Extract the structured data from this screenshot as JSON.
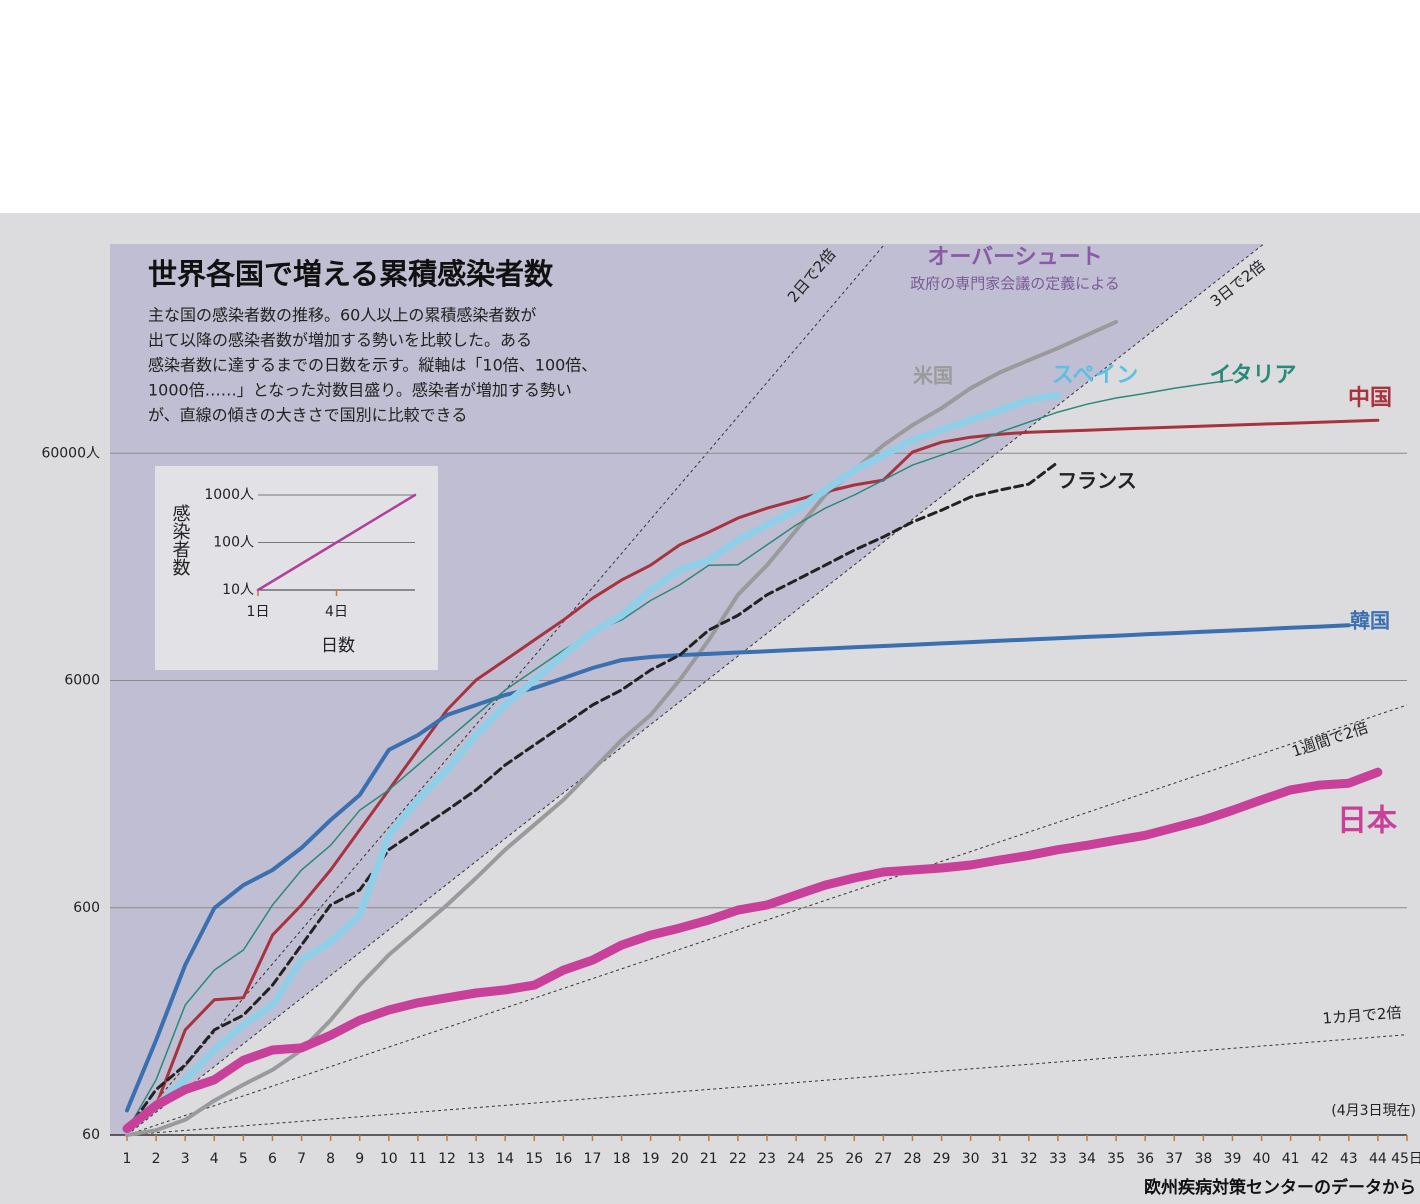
{
  "chart_data": [
    {
      "type": "line",
      "title": "世界各国で増える累積感染者数",
      "description": [
        "主な国の感染者数の推移。60人以上の累積感染者数が",
        "出て以降の感染者数が増加する勢いを比較した。ある",
        "感染者数に達するまでの日数を示す。縦軸は「10倍、100倍、",
        "1000倍……」となった対数目盛り。感染者が増加する勢い",
        "が、直線の傾きの大きさで国別に比較できる"
      ],
      "region_label": "オーバーシュート",
      "region_note": "政府の専門家会議の定義による",
      "note": "(4月3日現在)",
      "source": "欧州疾病対策センターのデータから",
      "log_y": true,
      "grid": true,
      "xlim": [
        1,
        45
      ],
      "ylim": [
        60,
        500000
      ],
      "xticks": [
        1,
        2,
        3,
        4,
        5,
        6,
        7,
        8,
        9,
        10,
        11,
        12,
        13,
        14,
        15,
        16,
        17,
        18,
        19,
        20,
        21,
        22,
        23,
        24,
        25,
        26,
        27,
        28,
        29,
        30,
        31,
        32,
        33,
        34,
        35,
        36,
        37,
        38,
        39,
        40,
        41,
        42,
        43,
        44,
        {
          "value": 45,
          "label": "45日"
        }
      ],
      "yticks": [
        60,
        600,
        6000,
        {
          "value": 60000,
          "label": "60000人"
        }
      ],
      "x": [
        1,
        2,
        3,
        4,
        5,
        6,
        7,
        8,
        9,
        10,
        11,
        12,
        13,
        14,
        15,
        16,
        17,
        18,
        19,
        20,
        21,
        22,
        23,
        24,
        25,
        26,
        27,
        28,
        29,
        30,
        31,
        32,
        33,
        34,
        35,
        36,
        37,
        38,
        39,
        40,
        41,
        42,
        43,
        44,
        45
      ],
      "reference_lines": [
        {
          "label": "2日で2倍",
          "doubling_days": 2
        },
        {
          "label": "3日で2倍",
          "doubling_days": 3
        },
        {
          "label": "1週間で2倍",
          "doubling_days": 7
        },
        {
          "label": "1カ月で2倍",
          "doubling_days": 30
        }
      ],
      "series": [
        {
          "name": "中国",
          "color": "#a8323e",
          "values": [
            64,
            81,
            174,
            236,
            241,
            455,
            617,
            880,
            1320,
            1980,
            2970,
            4450,
            6030,
            7380,
            9040,
            11070,
            13800,
            16600,
            19300,
            23700,
            27000,
            31100,
            34400,
            37300,
            40500,
            43500,
            45700,
            60700,
            67100,
            70600,
            72800,
            74300,
            75000,
            75800,
            76600,
            77400,
            78200,
            79000,
            79800,
            80600,
            81400,
            82200,
            83000,
            83900,
            null
          ]
        },
        {
          "name": "韓国",
          "color": "#3a6fb0",
          "values": [
            77,
            157,
            336,
            598,
            755,
            880,
            1100,
            1460,
            1880,
            2970,
            3450,
            4230,
            4680,
            5180,
            5560,
            6150,
            6810,
            7380,
            7610,
            7760,
            7860,
            7970,
            8070,
            8180,
            8290,
            8400,
            8510,
            8620,
            8740,
            8850,
            8970,
            9090,
            9210,
            9330,
            9450,
            9580,
            9700,
            9830,
            9960,
            10090,
            10230,
            10360,
            10500,
            null,
            null
          ]
        },
        {
          "name": "日本",
          "color": "#c8409a",
          "values": [
            64,
            81,
            95,
            105,
            128,
            142,
            145,
            165,
            192,
            213,
            229,
            241,
            253,
            261,
            274,
            319,
            353,
            411,
            455,
            488,
            530,
            586,
            617,
            683,
            755,
            811,
            862,
            880,
            898,
            925,
            973,
            1020,
            1080,
            1130,
            1190,
            1250,
            1350,
            1460,
            1610,
            1790,
            1980,
            2080,
            2120,
            2370,
            null
          ]
        },
        {
          "name": "米国",
          "color": "#9a9a9a",
          "values": [
            60,
            63,
            70,
            85,
            100,
            116,
            142,
            192,
            274,
            372,
            479,
            617,
            811,
            1080,
            1390,
            1790,
            2420,
            3280,
            4230,
            6030,
            9040,
            14300,
            19300,
            27500,
            39300,
            50600,
            65200,
            79800,
            94700,
            116000,
            136000,
            154000,
            174000,
            199000,
            227000,
            null,
            null,
            null,
            null,
            null,
            null,
            null,
            null,
            null,
            null
          ]
        },
        {
          "name": "スペイン",
          "color": "#8fd0e8",
          "values": [
            63,
            81,
            105,
            142,
            183,
            224,
            353,
            424,
            557,
            1250,
            1790,
            2420,
            3450,
            4680,
            6030,
            7760,
            9800,
            11600,
            15000,
            18400,
            20300,
            24900,
            29000,
            33700,
            41300,
            50600,
            58900,
            68600,
            75900,
            84000,
            92900,
            103000,
            108000,
            null,
            null,
            null,
            null,
            null,
            null,
            null,
            null,
            null,
            null,
            null,
            null
          ]
        },
        {
          "name": "イタリア",
          "color": "#2a8a7a",
          "values": [
            63,
            105,
            224,
            319,
            391,
            617,
            880,
            1130,
            1610,
            1980,
            2550,
            3280,
            4230,
            5450,
            6670,
            8160,
            9800,
            11070,
            13500,
            15800,
            19300,
            19400,
            23700,
            29000,
            34400,
            39300,
            45700,
            53200,
            58900,
            65200,
            74300,
            82300,
            91000,
            98600,
            105000,
            110000,
            116000,
            121000,
            126000,
            null,
            null,
            null,
            null,
            null,
            null
          ]
        },
        {
          "name": "フランス",
          "color": "#222222",
          "dash": true,
          "values": [
            63,
            95,
            122,
            174,
            202,
            274,
            411,
            617,
            718,
            1080,
            1320,
            1610,
            1980,
            2550,
            3120,
            3820,
            4680,
            5450,
            6670,
            7760,
            10000,
            11600,
            14300,
            16600,
            19300,
            22500,
            25700,
            29900,
            33700,
            38500,
            41300,
            43900,
            54800,
            null,
            null,
            null,
            null,
            null,
            null,
            null,
            null,
            null,
            null,
            null,
            null
          ]
        }
      ]
    },
    {
      "type": "line",
      "y_label": "感染者数",
      "x_label": "日数",
      "log_y": true,
      "grid": true,
      "xlim": [
        1,
        7
      ],
      "ylim": [
        10,
        1000
      ],
      "xticks": [
        {
          "value": 1,
          "label": "1日"
        },
        {
          "value": 4,
          "label": "4日"
        }
      ],
      "yticks": [
        {
          "value": 10,
          "label": "10人"
        },
        {
          "value": 100,
          "label": "100人"
        },
        {
          "value": 1000,
          "label": "1000人"
        }
      ],
      "x": [
        1,
        4,
        7
      ],
      "series": [
        {
          "color": "#b0409a",
          "values": [
            10,
            100,
            1000
          ]
        }
      ]
    }
  ]
}
